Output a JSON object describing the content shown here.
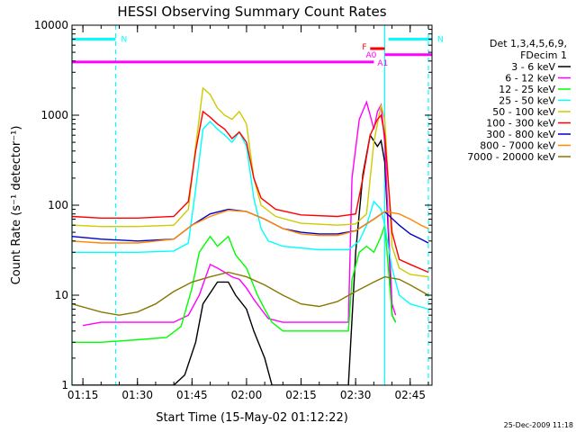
{
  "chart_data": {
    "type": "line",
    "title": "HESSI Observing Summary Count Rates",
    "xlabel": "Start Time (15-May-02 01:12:22)",
    "ylabel": "Count Rate (s⁻¹ detector⁻¹)",
    "yscale": "log",
    "ylim": [
      1,
      10000
    ],
    "xlim": [
      "01:12",
      "02:51"
    ],
    "x_ticks": [
      "01:15",
      "01:30",
      "01:45",
      "02:00",
      "02:15",
      "02:30",
      "02:45"
    ],
    "y_ticks": [
      "1",
      "10",
      "100",
      "1000",
      "10000"
    ],
    "legend_placement": "right",
    "legend_header": [
      "Det 1,3,4,5,6,9,",
      "FDecim 1"
    ],
    "footer_date": "25-Dec-2009 11:18",
    "flag_labels": {
      "N": "N",
      "F": "F",
      "A0": "A0",
      "A1": "A1"
    },
    "flags": [
      {
        "label": "N",
        "color": "#00ffff",
        "start": "01:12",
        "end": "01:24",
        "y": 7000
      },
      {
        "label": "N",
        "color": "#00ffff",
        "start": "02:39",
        "end": "02:51",
        "y": 7000
      },
      {
        "label": "F",
        "color": "#ff0000",
        "start": "02:34",
        "end": "02:38",
        "y": 5500
      },
      {
        "label": "A0",
        "color": "#ff00ff",
        "start": "02:38",
        "end": "02:51",
        "y": 4700
      },
      {
        "label": "A1",
        "color": "#ff00ff",
        "start": "01:12",
        "end": "02:35",
        "y": 3900
      }
    ],
    "markers": [
      {
        "time": "01:12",
        "style": "solid",
        "color": "#00ffff"
      },
      {
        "time": "01:24",
        "style": "dashed",
        "color": "#00ffff"
      },
      {
        "time": "02:38",
        "style": "solid",
        "color": "#00ffff"
      },
      {
        "time": "02:50",
        "style": "dashed",
        "color": "#00ffff"
      }
    ],
    "series": [
      {
        "name": "3 - 6 keV",
        "color": "#000000",
        "x": [
          "01:12",
          "01:23",
          "01:40",
          "01:43",
          "01:46",
          "01:48",
          "01:52",
          "01:55",
          "01:57",
          "02:00",
          "02:02",
          "02:05",
          "02:07",
          "02:28",
          "02:30",
          "02:32",
          "02:34",
          "02:36",
          "02:37",
          "02:38",
          "02:39",
          "02:40",
          "02:41"
        ],
        "y": [
          1,
          1,
          1,
          1.3,
          3,
          8,
          14,
          14,
          10,
          7,
          4,
          2,
          1,
          1,
          30,
          220,
          600,
          450,
          520,
          300,
          50,
          6,
          5
        ]
      },
      {
        "name": "6 - 12 keV",
        "color": "#ff00ff",
        "x": [
          "01:15",
          "01:20",
          "01:30",
          "01:40",
          "01:44",
          "01:47",
          "01:50",
          "01:52",
          "01:54",
          "01:56",
          "01:58",
          "02:00",
          "02:02",
          "02:04",
          "02:06",
          "02:10",
          "02:20",
          "02:28",
          "02:29",
          "02:31",
          "02:33",
          "02:34",
          "02:35",
          "02:36",
          "02:37",
          "02:38",
          "02:39",
          "02:40",
          "02:41"
        ],
        "y": [
          4.6,
          5,
          5,
          5,
          6,
          10,
          22,
          20,
          18,
          16,
          15,
          12,
          9,
          7,
          5.5,
          5,
          5,
          5,
          200,
          900,
          1400,
          1000,
          700,
          1100,
          1300,
          500,
          60,
          8,
          6
        ]
      },
      {
        "name": "12 - 25 keV",
        "color": "#00ff00",
        "x": [
          "01:12",
          "01:20",
          "01:30",
          "01:38",
          "01:42",
          "01:45",
          "01:47",
          "01:50",
          "01:52",
          "01:55",
          "01:57",
          "02:00",
          "02:03",
          "02:05",
          "02:07",
          "02:10",
          "02:20",
          "02:28",
          "02:29",
          "02:31",
          "02:33",
          "02:35",
          "02:37",
          "02:38",
          "02:39",
          "02:40",
          "02:41"
        ],
        "y": [
          3,
          3,
          3.2,
          3.4,
          4.5,
          12,
          30,
          45,
          35,
          45,
          28,
          20,
          10,
          7,
          5,
          4,
          4,
          4,
          15,
          30,
          35,
          30,
          45,
          60,
          20,
          6,
          5
        ]
      },
      {
        "name": "25 - 50 keV",
        "color": "#00ffff",
        "x": [
          "01:12",
          "01:20",
          "01:30",
          "01:40",
          "01:44",
          "01:46",
          "01:48",
          "01:50",
          "01:52",
          "01:54",
          "01:56",
          "01:58",
          "02:00",
          "02:02",
          "02:04",
          "02:06",
          "02:10",
          "02:20",
          "02:28",
          "02:31",
          "02:33",
          "02:35",
          "02:37",
          "02:38",
          "02:40",
          "02:42",
          "02:45",
          "02:50"
        ],
        "y": [
          30,
          30,
          30,
          31,
          38,
          150,
          700,
          850,
          700,
          600,
          500,
          650,
          450,
          120,
          55,
          40,
          35,
          32,
          32,
          40,
          60,
          110,
          90,
          60,
          20,
          10,
          8,
          7
        ]
      },
      {
        "name": "50 - 100 keV",
        "color": "#cccc00",
        "x": [
          "01:12",
          "01:20",
          "01:30",
          "01:40",
          "01:44",
          "01:46",
          "01:48",
          "01:50",
          "01:52",
          "01:54",
          "01:56",
          "01:58",
          "02:00",
          "02:02",
          "02:04",
          "02:08",
          "02:15",
          "02:25",
          "02:30",
          "02:33",
          "02:35",
          "02:37",
          "02:38",
          "02:40",
          "02:42",
          "02:45",
          "02:50"
        ],
        "y": [
          60,
          58,
          58,
          60,
          90,
          450,
          2000,
          1700,
          1200,
          1000,
          900,
          1100,
          800,
          200,
          100,
          75,
          63,
          60,
          62,
          80,
          500,
          1300,
          900,
          35,
          20,
          17,
          16
        ]
      },
      {
        "name": "100 - 300 keV",
        "color": "#ff0000",
        "x": [
          "01:12",
          "01:20",
          "01:30",
          "01:40",
          "01:44",
          "01:46",
          "01:48",
          "01:50",
          "01:52",
          "01:54",
          "01:56",
          "01:58",
          "02:00",
          "02:02",
          "02:04",
          "02:08",
          "02:15",
          "02:25",
          "02:30",
          "02:32",
          "02:34",
          "02:36",
          "02:37",
          "02:38",
          "02:40",
          "02:42",
          "02:45",
          "02:50"
        ],
        "y": [
          75,
          72,
          72,
          75,
          110,
          400,
          1100,
          950,
          800,
          700,
          550,
          650,
          500,
          200,
          120,
          90,
          78,
          75,
          80,
          200,
          600,
          900,
          1000,
          600,
          50,
          25,
          22,
          18
        ]
      },
      {
        "name": "300 - 800 keV",
        "color": "#0000cc",
        "x": [
          "01:12",
          "01:20",
          "01:30",
          "01:40",
          "01:45",
          "01:50",
          "01:55",
          "02:00",
          "02:05",
          "02:10",
          "02:15",
          "02:20",
          "02:25",
          "02:30",
          "02:35",
          "02:38",
          "02:42",
          "02:45",
          "02:48",
          "02:50"
        ],
        "y": [
          45,
          42,
          40,
          42,
          60,
          80,
          90,
          85,
          70,
          55,
          50,
          48,
          48,
          52,
          70,
          85,
          60,
          48,
          42,
          38
        ]
      },
      {
        "name": "800 - 7000 keV",
        "color": "#ff8800",
        "x": [
          "01:12",
          "01:20",
          "01:30",
          "01:40",
          "01:45",
          "01:50",
          "01:55",
          "02:00",
          "02:05",
          "02:10",
          "02:15",
          "02:20",
          "02:25",
          "02:30",
          "02:35",
          "02:38",
          "02:42",
          "02:45",
          "02:48",
          "02:50"
        ],
        "y": [
          40,
          38,
          38,
          42,
          60,
          75,
          88,
          85,
          70,
          55,
          48,
          46,
          46,
          52,
          70,
          85,
          80,
          70,
          60,
          55
        ]
      },
      {
        "name": "7000 - 20000 keV",
        "color": "#887700",
        "x": [
          "01:12",
          "01:20",
          "01:25",
          "01:30",
          "01:35",
          "01:40",
          "01:45",
          "01:50",
          "01:55",
          "02:00",
          "02:05",
          "02:10",
          "02:15",
          "02:20",
          "02:25",
          "02:30",
          "02:35",
          "02:38",
          "02:42",
          "02:45",
          "02:50"
        ],
        "y": [
          8,
          6.5,
          6,
          6.5,
          8,
          11,
          14,
          16,
          18,
          16,
          13,
          10,
          8,
          7.5,
          8.5,
          11,
          14,
          16,
          15,
          13,
          10
        ]
      }
    ]
  }
}
